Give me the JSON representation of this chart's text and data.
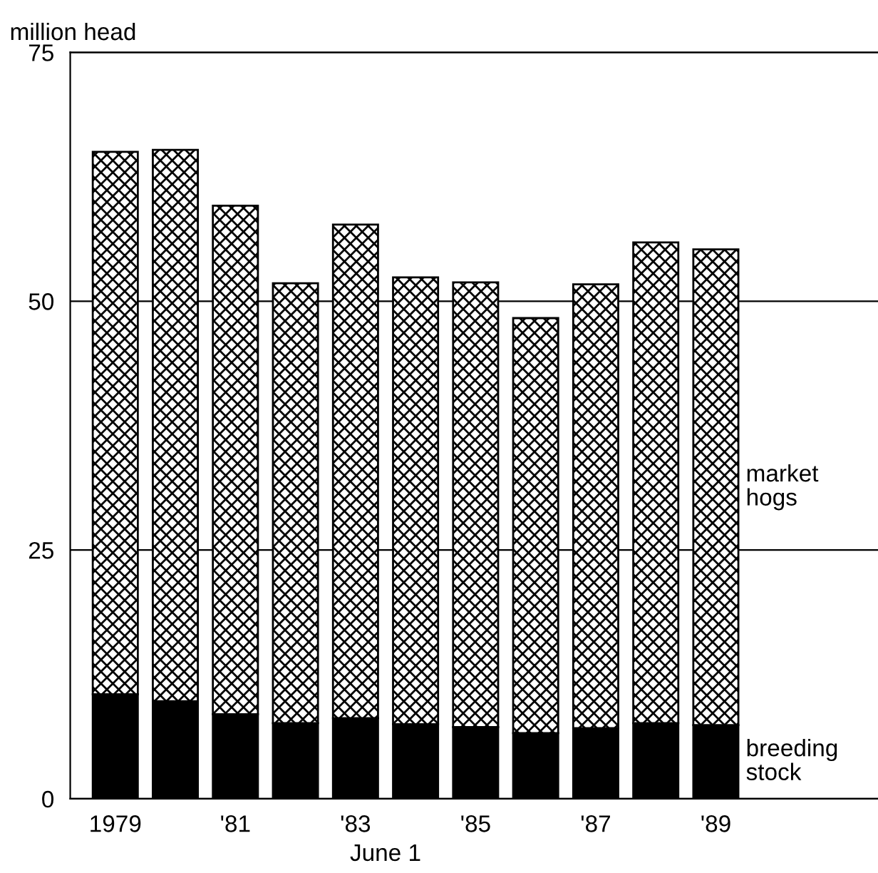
{
  "chart_data": {
    "type": "bar",
    "stacked": true,
    "ylabel": "million head",
    "xlabel": "June 1",
    "categories": [
      "1979",
      null,
      "'81",
      null,
      "'83",
      null,
      "'85",
      null,
      "'87",
      null,
      "'89"
    ],
    "series": [
      {
        "name": "breeding stock",
        "color": "#000000",
        "values": [
          10.5,
          9.8,
          8.5,
          7.6,
          8.1,
          7.5,
          7.2,
          6.6,
          7.1,
          7.6,
          7.4
        ]
      },
      {
        "name": "market hogs",
        "color": "#000000",
        "values": [
          54.5,
          55.4,
          51.1,
          44.2,
          49.6,
          44.9,
          44.7,
          41.7,
          44.6,
          48.3,
          47.8
        ]
      }
    ],
    "ylim": [
      0,
      75
    ],
    "yticks": [
      0,
      25,
      50,
      75
    ],
    "grid": "y",
    "legend": false
  }
}
